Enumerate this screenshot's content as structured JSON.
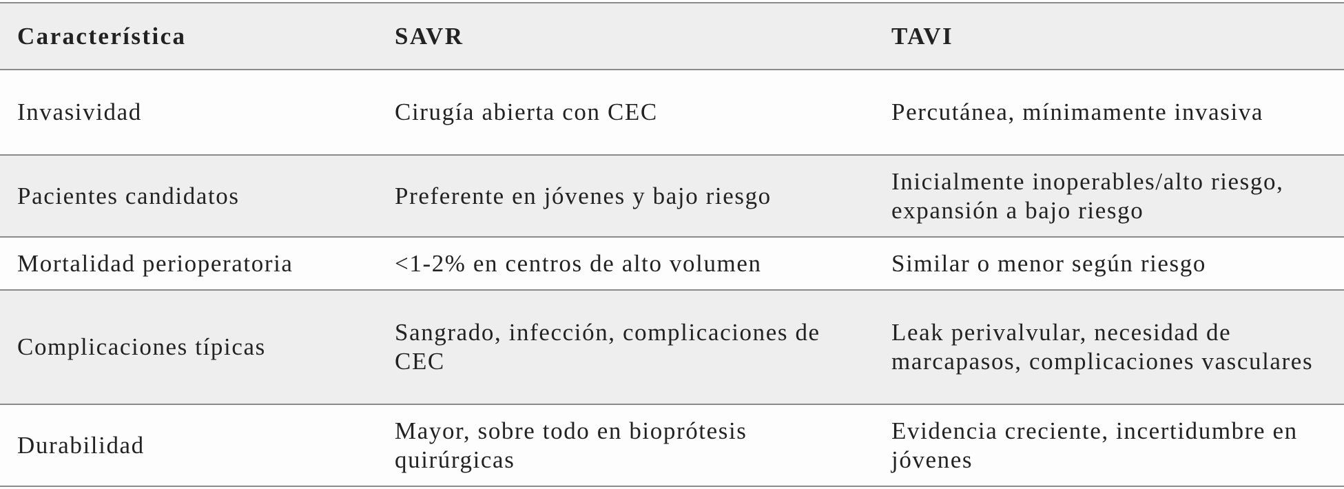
{
  "table": {
    "headers": [
      "Característica",
      "SAVR",
      "TAVI"
    ],
    "rows": [
      [
        "Invasividad",
        "Cirugía abierta con CEC",
        "Percutánea, mínimamente invasiva"
      ],
      [
        "Pacientes candidatos",
        "Preferente en jóvenes y bajo riesgo",
        "Inicialmente inoperables/alto riesgo, expansión a bajo riesgo"
      ],
      [
        "Mortalidad perioperatoria",
        "<1-2% en centros de alto volumen",
        "Similar o menor según riesgo"
      ],
      [
        "Complicaciones típicas",
        "Sangrado, infección, complicaciones de CEC",
        "Leak perivalvular, necesidad de marcapasos, complicaciones vasculares"
      ],
      [
        "Durabilidad",
        "Mayor, sobre todo en bioprótesis quirúrgicas",
        "Evidencia creciente, incertidumbre en jóvenes"
      ]
    ]
  }
}
